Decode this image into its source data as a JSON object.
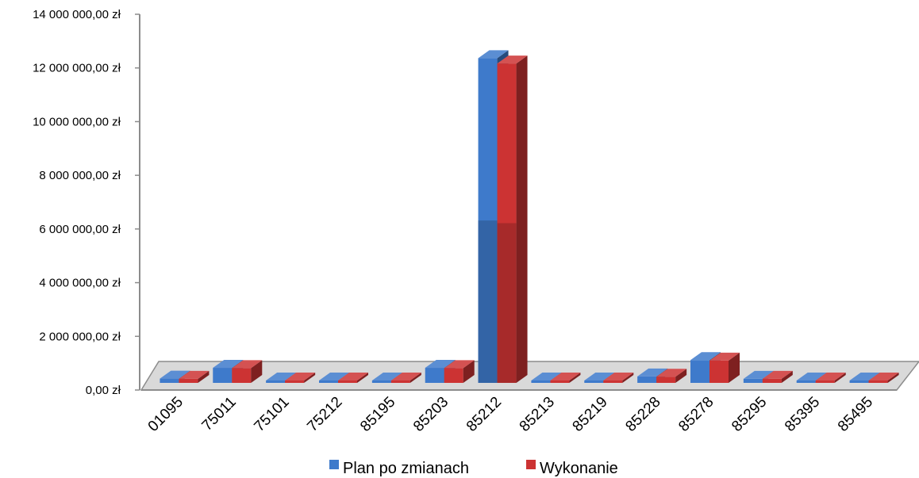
{
  "chart_data": {
    "type": "bar",
    "categories": [
      "01095",
      "75011",
      "75101",
      "75212",
      "85195",
      "85203",
      "85212",
      "85213",
      "85219",
      "85228",
      "85278",
      "85295",
      "85395",
      "85495"
    ],
    "series": [
      {
        "name": "Plan po zmianach",
        "color": "#3e7acb",
        "values": [
          160000,
          560000,
          40000,
          10000,
          30000,
          560000,
          12100000,
          30000,
          60000,
          240000,
          850000,
          150000,
          10000,
          60000
        ]
      },
      {
        "name": "Wykonanie",
        "color": "#cc3333",
        "values": [
          150000,
          550000,
          40000,
          10000,
          30000,
          550000,
          11900000,
          30000,
          60000,
          230000,
          830000,
          150000,
          10000,
          60000
        ]
      }
    ],
    "yticks": [
      "0,00 zł",
      "2 000 000,00 zł",
      "4 000 000,00 zł",
      "6 000 000,00 zł",
      "8 000 000,00 zł",
      "10 000 000,00 zł",
      "12 000 000,00 zł",
      "14 000 000,00 zł"
    ],
    "ylim": [
      0,
      14000000
    ],
    "title": "",
    "xlabel": "",
    "ylabel": "",
    "legend_position": "bottom",
    "grid": false,
    "style": "3d-clustered-column"
  }
}
